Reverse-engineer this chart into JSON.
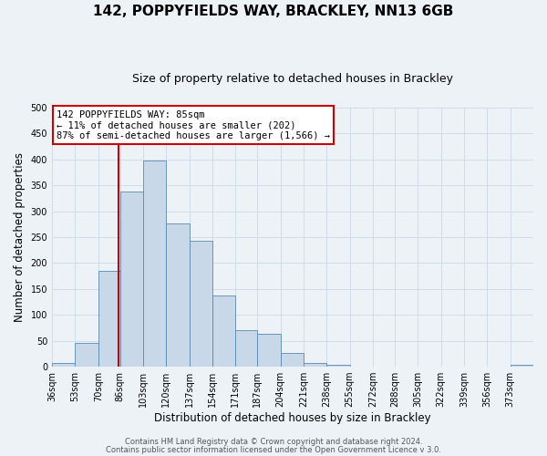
{
  "title": "142, POPPYFIELDS WAY, BRACKLEY, NN13 6GB",
  "subtitle": "Size of property relative to detached houses in Brackley",
  "xlabel": "Distribution of detached houses by size in Brackley",
  "ylabel": "Number of detached properties",
  "footer_line1": "Contains HM Land Registry data © Crown copyright and database right 2024.",
  "footer_line2": "Contains public sector information licensed under the Open Government Licence v 3.0.",
  "bin_labels": [
    "36sqm",
    "53sqm",
    "70sqm",
    "86sqm",
    "103sqm",
    "120sqm",
    "137sqm",
    "154sqm",
    "171sqm",
    "187sqm",
    "204sqm",
    "221sqm",
    "238sqm",
    "255sqm",
    "272sqm",
    "288sqm",
    "305sqm",
    "322sqm",
    "339sqm",
    "356sqm",
    "373sqm"
  ],
  "bin_edges": [
    36,
    53,
    70,
    86,
    103,
    120,
    137,
    154,
    171,
    187,
    204,
    221,
    238,
    255,
    272,
    288,
    305,
    322,
    339,
    356,
    373,
    390
  ],
  "bar_heights": [
    8,
    46,
    185,
    338,
    398,
    277,
    242,
    137,
    70,
    63,
    27,
    8,
    3,
    0,
    0,
    0,
    0,
    0,
    0,
    0,
    3
  ],
  "bar_color": "#c8d8e8",
  "bar_edge_color": "#5a8ab0",
  "vline_x": 85,
  "vline_color": "#cc0000",
  "ylim": [
    0,
    500
  ],
  "yticks": [
    0,
    50,
    100,
    150,
    200,
    250,
    300,
    350,
    400,
    450,
    500
  ],
  "annotation_text_line1": "142 POPPYFIELDS WAY: 85sqm",
  "annotation_text_line2": "← 11% of detached houses are smaller (202)",
  "annotation_text_line3": "87% of semi-detached houses are larger (1,566) →",
  "annotation_box_color": "#ffffff",
  "annotation_border_color": "#cc0000",
  "grid_color": "#d0dde8",
  "background_color": "#edf2f7",
  "title_fontsize": 11,
  "subtitle_fontsize": 9,
  "xlabel_fontsize": 8.5,
  "ylabel_fontsize": 8.5,
  "tick_fontsize": 7,
  "ann_fontsize": 7.5,
  "footer_fontsize": 6
}
